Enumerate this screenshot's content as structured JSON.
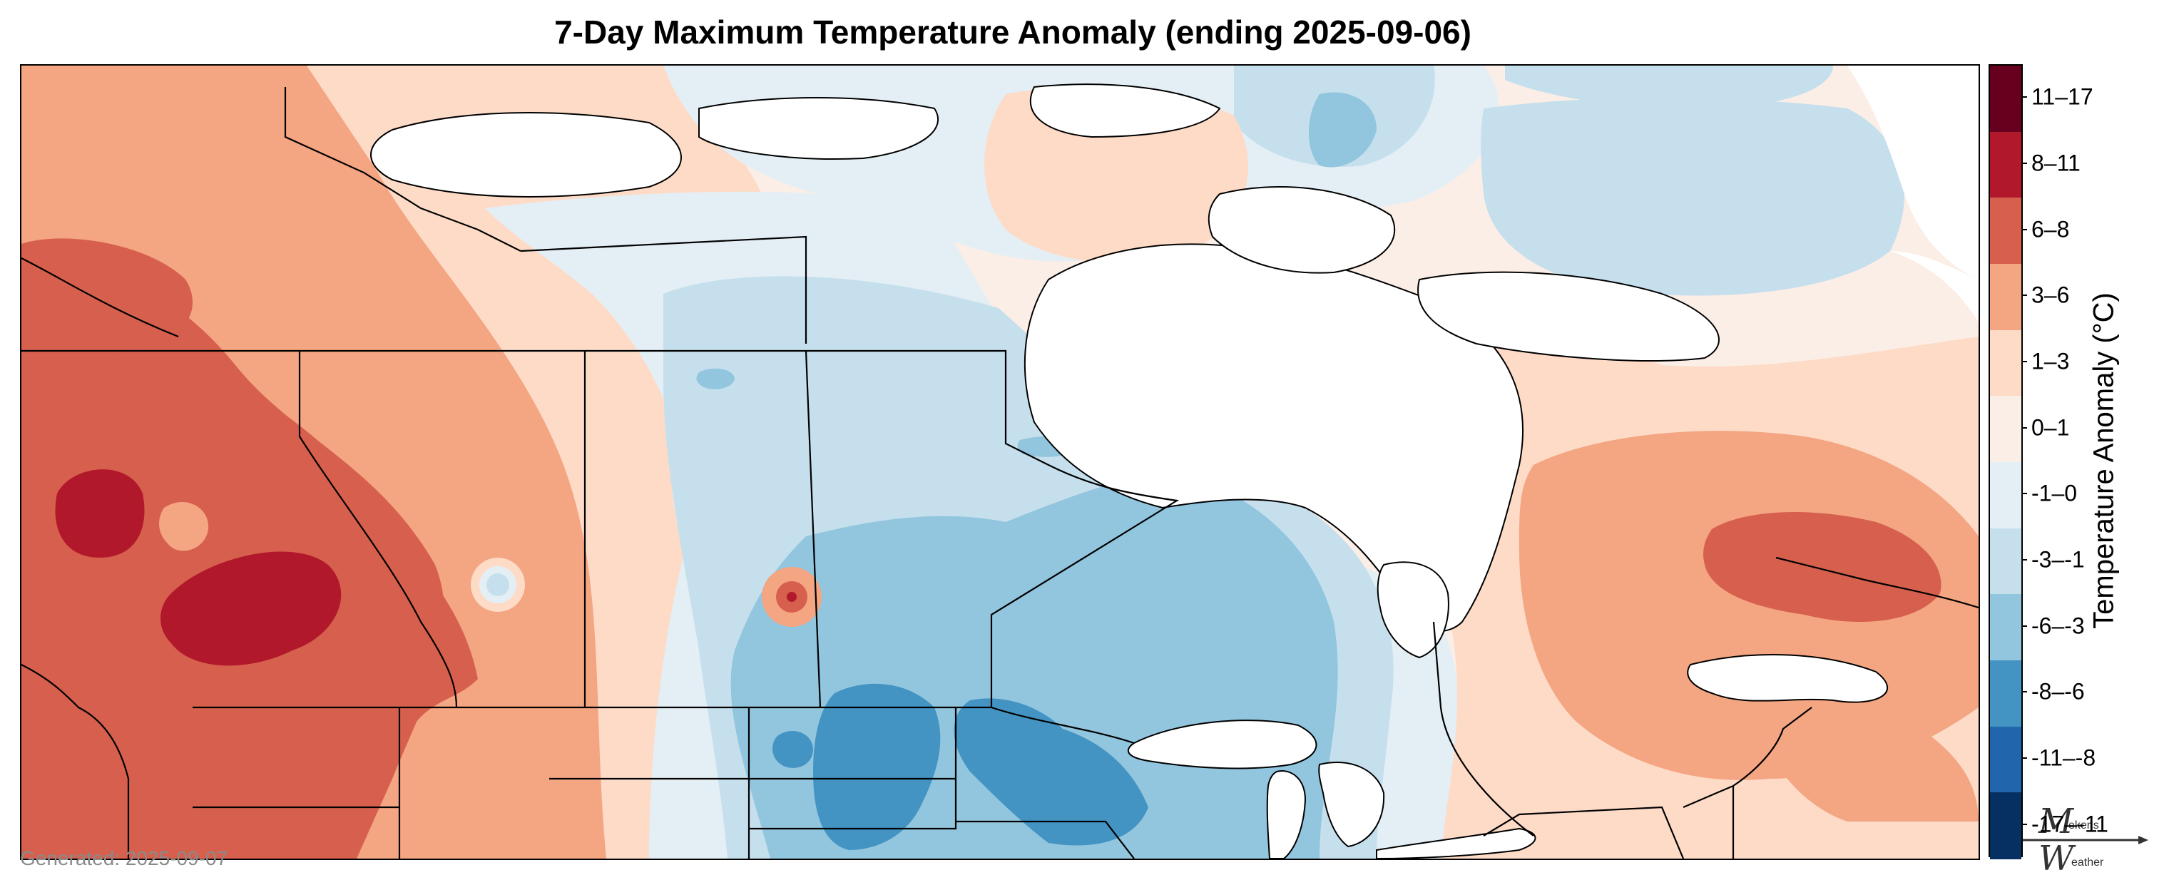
{
  "title": "7-Day Maximum Temperature Anomaly (ending 2025-09-06)",
  "generated_label": "Generated: 2025-09-07",
  "colorbar": {
    "title": "Temperature Anomaly (°C)",
    "bins": [
      {
        "label": "11–17",
        "color": "#67001f"
      },
      {
        "label": "8–11",
        "color": "#b2182b"
      },
      {
        "label": "6–8",
        "color": "#d6604d"
      },
      {
        "label": "3–6",
        "color": "#f4a582"
      },
      {
        "label": "1–3",
        "color": "#fddbc7"
      },
      {
        "label": "0–1",
        "color": "#fbeee6"
      },
      {
        "label": "-1–0",
        "color": "#e4eff5"
      },
      {
        "label": "-3–-1",
        "color": "#c6dfed"
      },
      {
        "label": "-6–-3",
        "color": "#92c5de"
      },
      {
        "label": "-8–-6",
        "color": "#4393c3"
      },
      {
        "label": "-11–-8",
        "color": "#2166ac"
      },
      {
        "label": "-17–-11",
        "color": "#053061"
      }
    ]
  },
  "logo": {
    "line1_initial": "M",
    "line1_text": "ekens",
    "line2_initial": "W",
    "line2_text": "eather"
  },
  "map": {
    "region": "Canada and northern United States",
    "colors": {
      "warm_strong": "#b2182b",
      "warm_mod": "#d6604d",
      "warm": "#f4a582",
      "warm_light": "#fddbc7",
      "neutral_warm": "#fbeee6",
      "neutral_cool": "#e4eff5",
      "cool_light": "#c6dfed",
      "cool": "#92c5de",
      "cool_mod": "#6aaed6",
      "cool_strong": "#4393c3",
      "water": "#ffffff",
      "borders": "#000000"
    }
  }
}
